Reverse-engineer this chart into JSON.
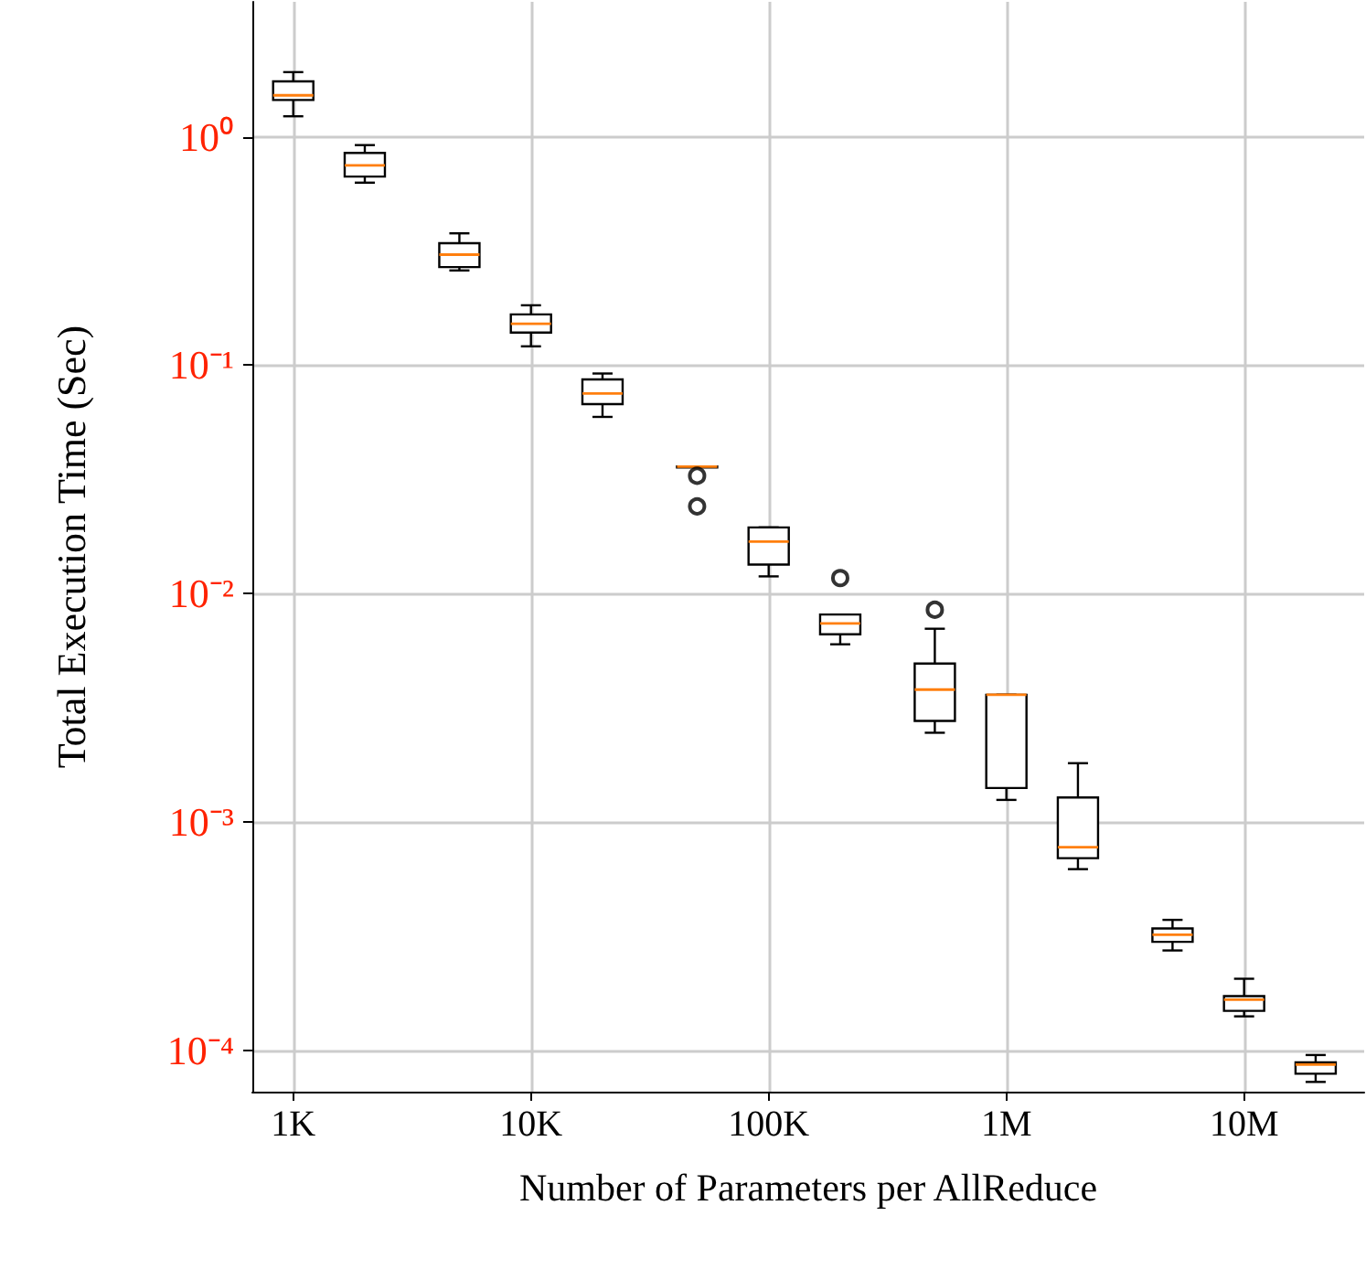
{
  "chart_data": {
    "type": "box",
    "xlabel": "Number of Parameters per AllReduce",
    "ylabel": "Total Execution Time (Sec)",
    "log": "xy",
    "grid": true,
    "x": [
      1000,
      2000,
      5000,
      10000,
      20000,
      50000,
      100000,
      200000,
      500000,
      1000000,
      2000000,
      5000000,
      10000000,
      20000000
    ],
    "boxes": [
      {
        "low": 1.23,
        "q1": 1.45,
        "median": 1.52,
        "q3": 1.75,
        "high": 1.92
      },
      {
        "low": 0.63,
        "q1": 0.67,
        "median": 0.75,
        "q3": 0.85,
        "high": 0.92
      },
      {
        "low": 0.26,
        "q1": 0.269,
        "median": 0.305,
        "q3": 0.342,
        "high": 0.378
      },
      {
        "low": 0.121,
        "q1": 0.139,
        "median": 0.152,
        "q3": 0.167,
        "high": 0.183
      },
      {
        "low": 0.0594,
        "q1": 0.0676,
        "median": 0.0752,
        "q3": 0.0867,
        "high": 0.092
      },
      {
        "low": 0.036,
        "q1": 0.036,
        "median": 0.036,
        "q3": 0.036,
        "high": 0.036,
        "outliers": [
          0.0328,
          0.0241
        ]
      },
      {
        "low": 0.0119,
        "q1": 0.0134,
        "median": 0.0169,
        "q3": 0.0195,
        "high": 0.0195
      },
      {
        "low": 0.006,
        "q1": 0.00664,
        "median": 0.0074,
        "q3": 0.0081,
        "high": 0.0081,
        "outliers": [
          0.0117
        ]
      },
      {
        "low": 0.00246,
        "q1": 0.00277,
        "median": 0.0038,
        "q3": 0.00494,
        "high": 0.00702,
        "outliers": [
          0.0085
        ]
      },
      {
        "low": 0.00125,
        "q1": 0.00141,
        "median": 0.00361,
        "q3": 0.00361,
        "high": 0.00361
      },
      {
        "low": 0.000622,
        "q1": 0.000695,
        "median": 0.000776,
        "q3": 0.00128,
        "high": 0.00181
      },
      {
        "low": 0.000274,
        "q1": 0.000299,
        "median": 0.000321,
        "q3": 0.000342,
        "high": 0.000373
      },
      {
        "low": 0.000141,
        "q1": 0.000149,
        "median": 0.000167,
        "q3": 0.000173,
        "high": 0.000206
      },
      {
        "low": 7.28e-05,
        "q1": 7.91e-05,
        "median": 8.67e-05,
        "q3": 8.87e-05,
        "high": 9.55e-05
      }
    ],
    "xlim": [
      673,
      32000000
    ],
    "xticks": [
      {
        "value": 1000,
        "label": "1K"
      },
      {
        "value": 10000,
        "label": "10K"
      },
      {
        "value": 100000,
        "label": "100K"
      },
      {
        "value": 1000000,
        "label": "1M"
      },
      {
        "value": 10000000,
        "label": "10M"
      }
    ],
    "ylim": [
      6.6e-05,
      3.9
    ],
    "yticks": [
      {
        "value": 1,
        "label": "10⁰"
      },
      {
        "value": 0.1,
        "label": "10⁻¹"
      },
      {
        "value": 0.01,
        "label": "10⁻²"
      },
      {
        "value": 0.001,
        "label": "10⁻³"
      },
      {
        "value": 0.0001,
        "label": "10⁻⁴"
      }
    ]
  }
}
